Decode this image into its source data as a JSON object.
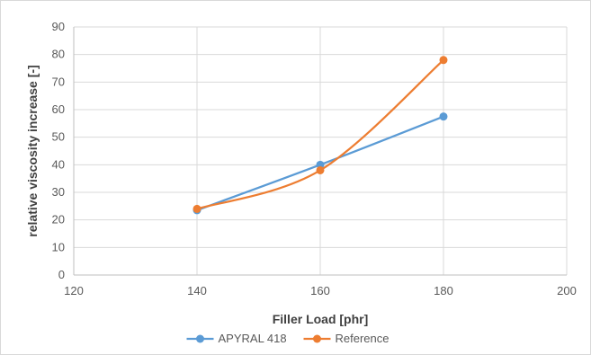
{
  "chart_data": {
    "type": "line",
    "title": "",
    "xlabel": "Filler Load [phr]",
    "ylabel": "relative viscosity increase [-]",
    "xlim": [
      120,
      200
    ],
    "ylim": [
      0,
      90
    ],
    "x_ticks": [
      120,
      140,
      160,
      180,
      200
    ],
    "y_ticks": [
      0,
      10,
      20,
      30,
      40,
      50,
      60,
      70,
      80,
      90
    ],
    "grid": true,
    "legend": "bottom",
    "smooth": true,
    "series": [
      {
        "name": "APYRAL 418",
        "color": "#5b9bd5",
        "x": [
          140,
          160,
          180
        ],
        "y": [
          23.5,
          40,
          57.5
        ]
      },
      {
        "name": "Reference",
        "color": "#ed7d31",
        "x": [
          140,
          160,
          180
        ],
        "y": [
          24,
          38,
          78
        ]
      }
    ]
  }
}
